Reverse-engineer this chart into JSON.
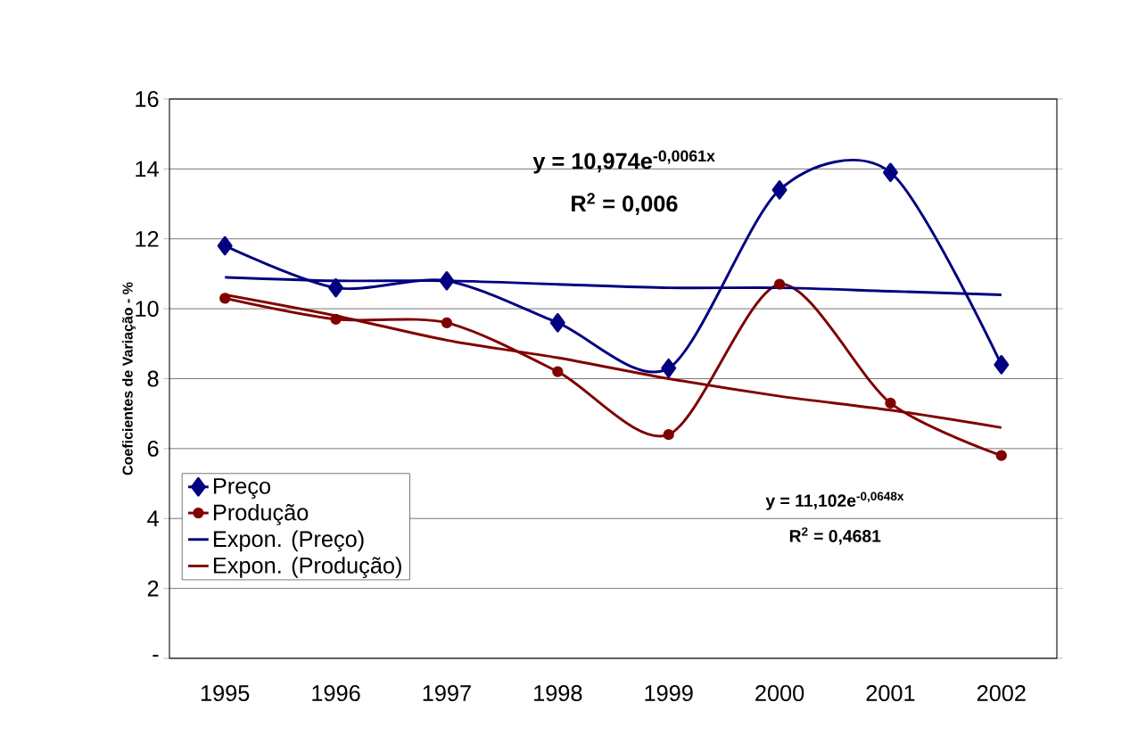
{
  "chart_data": {
    "type": "line",
    "ylabel": "Coeficientes de Variação - %",
    "categories": [
      "1995",
      "1996",
      "1997",
      "1998",
      "1999",
      "2000",
      "2001",
      "2002"
    ],
    "series": [
      {
        "name": "Preço",
        "color": "#000080",
        "marker": "diamond",
        "values": [
          11.8,
          10.6,
          10.8,
          9.6,
          8.3,
          13.4,
          13.9,
          8.4
        ]
      },
      {
        "name": "Produção",
        "color": "#800000",
        "marker": "circle",
        "values": [
          10.3,
          9.7,
          9.6,
          8.2,
          6.4,
          10.7,
          7.3,
          5.8
        ]
      },
      {
        "name": "Expon. (Preço)",
        "color": "#000080",
        "marker": "none",
        "values": [
          10.9,
          10.8,
          10.8,
          10.7,
          10.6,
          10.6,
          10.5,
          10.4
        ]
      },
      {
        "name": "Expon. (Produção)",
        "color": "#800000",
        "marker": "none",
        "values": [
          10.4,
          9.8,
          9.1,
          8.6,
          8.0,
          7.5,
          7.1,
          6.6
        ]
      }
    ],
    "ylim": [
      0,
      16
    ],
    "yticks": [
      {
        "value": 0,
        "label": "-"
      },
      2,
      4,
      6,
      8,
      10,
      12,
      14,
      16
    ],
    "grid": "y",
    "legend": "bottom left",
    "line_style": "solid",
    "annotations": [
      "y = 10,974e$^{-0,0061x}$",
      "R$^{2}$ = 0,006",
      "y = 11,102e$^{-0,0648x}$",
      "R$^{2}$ = 0,4681"
    ]
  }
}
